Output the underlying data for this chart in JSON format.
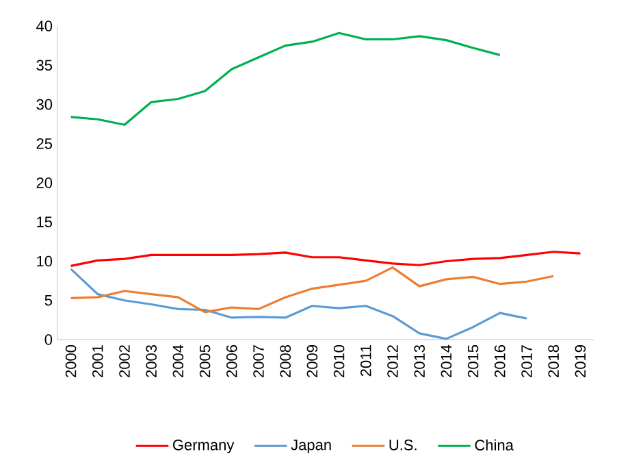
{
  "chart_data": {
    "type": "line",
    "categories": [
      "2000",
      "2001",
      "2002",
      "2003",
      "2004",
      "2005",
      "2006",
      "2007",
      "2008",
      "2009",
      "2010",
      "2011",
      "2012",
      "2013",
      "2014",
      "2015",
      "2016",
      "2017",
      "2018",
      "2019"
    ],
    "ylim": [
      0,
      40
    ],
    "yticks": [
      0,
      5,
      10,
      15,
      20,
      25,
      30,
      35,
      40
    ],
    "grid": false,
    "legend": "bottom",
    "marker": "none",
    "line_style": "solid",
    "series": [
      {
        "name": "Germany",
        "color": "#ff0000",
        "values": [
          9.4,
          10.1,
          10.3,
          10.8,
          10.8,
          10.8,
          10.8,
          10.9,
          11.1,
          10.5,
          10.5,
          10.1,
          9.7,
          9.5,
          10.0,
          10.3,
          10.4,
          10.8,
          11.2,
          11.0
        ]
      },
      {
        "name": "Japan",
        "color": "#5b9bd5",
        "values": [
          9.0,
          5.8,
          5.0,
          4.5,
          3.9,
          3.8,
          2.8,
          2.9,
          2.8,
          4.3,
          4.0,
          4.3,
          3.0,
          0.8,
          0.1,
          1.6,
          3.4,
          2.7,
          null,
          null
        ]
      },
      {
        "name": "U.S.",
        "color": "#ed7d31",
        "values": [
          5.3,
          5.4,
          6.2,
          5.8,
          5.4,
          3.5,
          4.1,
          3.9,
          5.4,
          6.5,
          7.0,
          7.5,
          9.2,
          6.8,
          7.7,
          8.0,
          7.1,
          7.4,
          8.1,
          null
        ]
      },
      {
        "name": "China",
        "color": "#00b050",
        "values": [
          28.4,
          28.1,
          27.4,
          30.3,
          30.7,
          31.7,
          34.5,
          36.0,
          37.5,
          38.0,
          39.1,
          38.3,
          38.3,
          38.7,
          38.2,
          37.2,
          36.3,
          null,
          null,
          null
        ]
      }
    ]
  }
}
